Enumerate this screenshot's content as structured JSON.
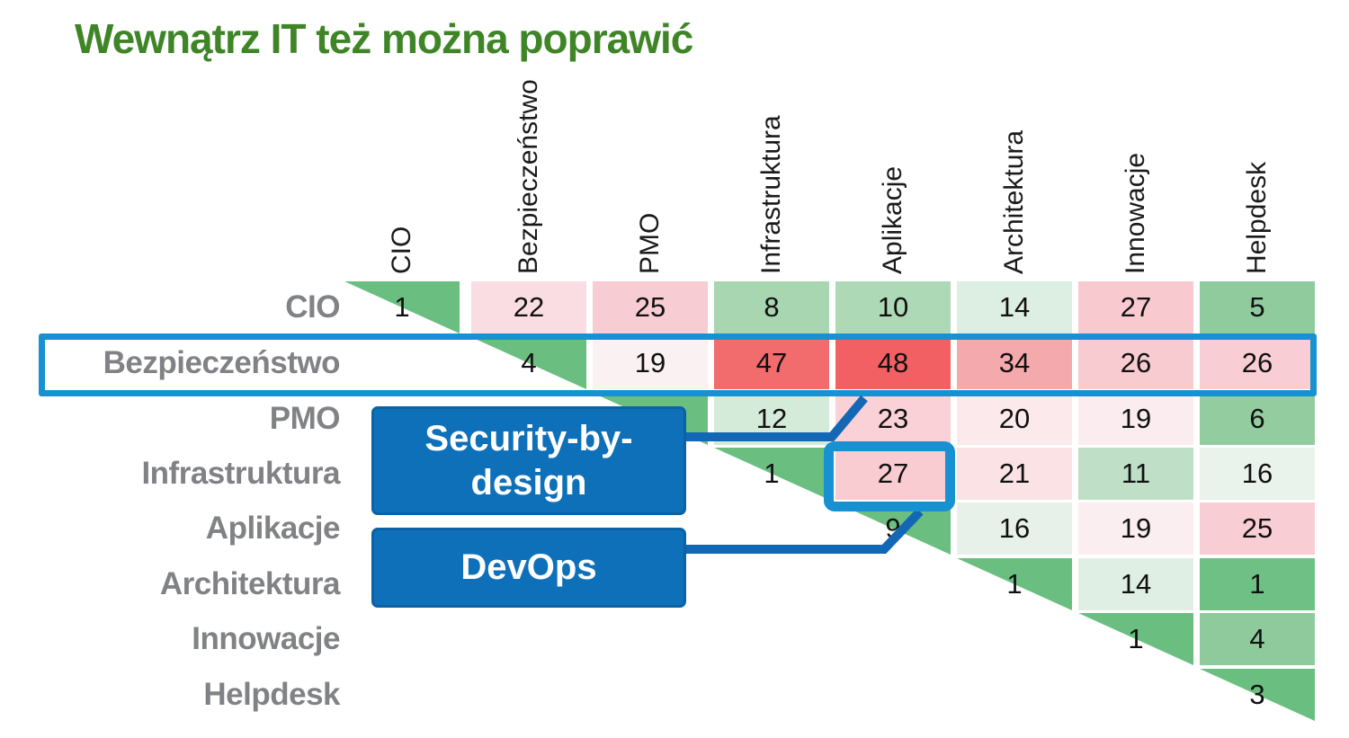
{
  "title": {
    "text": "Wewnątrz IT też można poprawić"
  },
  "colors": {
    "title_green": "#3f8527",
    "accent_blue": "#1791d1",
    "line_blue": "#1268b4",
    "callout_blue": "#0d70b8",
    "diagonal_green": "#6abe80"
  },
  "matrix": {
    "columns": [
      "CIO",
      "Bezpieczeństwo",
      "PMO",
      "Infrastruktura",
      "Aplikacje",
      "Architektura",
      "Innowacje",
      "Helpdesk"
    ],
    "rows": [
      "CIO",
      "Bezpieczeństwo",
      "PMO",
      "Infrastruktura",
      "Aplikacje",
      "Architektura",
      "Innowacje",
      "Helpdesk"
    ],
    "cells": [
      {
        "r": 0,
        "c": 0,
        "v": "1",
        "diag": true
      },
      {
        "r": 0,
        "c": 1,
        "v": "22",
        "bg": "#fadde2"
      },
      {
        "r": 0,
        "c": 2,
        "v": "25",
        "bg": "#f8ccd3"
      },
      {
        "r": 0,
        "c": 3,
        "v": "8",
        "bg": "#a8d6b1"
      },
      {
        "r": 0,
        "c": 4,
        "v": "10",
        "bg": "#aed9b7"
      },
      {
        "r": 0,
        "c": 5,
        "v": "14",
        "bg": "#ddeee2"
      },
      {
        "r": 0,
        "c": 6,
        "v": "27",
        "bg": "#f8c9cf"
      },
      {
        "r": 0,
        "c": 7,
        "v": "5",
        "bg": "#90cb9e"
      },
      {
        "r": 1,
        "c": 1,
        "v": "4",
        "diag": true
      },
      {
        "r": 1,
        "c": 2,
        "v": "19",
        "bg": "#faf1f2"
      },
      {
        "r": 1,
        "c": 3,
        "v": "47",
        "bg": "#f26b6d"
      },
      {
        "r": 1,
        "c": 4,
        "v": "48",
        "bg": "#f26063"
      },
      {
        "r": 1,
        "c": 5,
        "v": "34",
        "bg": "#f4a9ac"
      },
      {
        "r": 1,
        "c": 6,
        "v": "26",
        "bg": "#f8cbd1"
      },
      {
        "r": 1,
        "c": 7,
        "v": "26",
        "bg": "#f8cdd3"
      },
      {
        "r": 2,
        "c": 2,
        "v": "",
        "diag": true
      },
      {
        "r": 2,
        "c": 3,
        "v": "12",
        "bg": "#d5ebda"
      },
      {
        "r": 2,
        "c": 4,
        "v": "23",
        "bg": "#f9d1d7"
      },
      {
        "r": 2,
        "c": 5,
        "v": "20",
        "bg": "#fbe9ec"
      },
      {
        "r": 2,
        "c": 6,
        "v": "19",
        "bg": "#fbedef"
      },
      {
        "r": 2,
        "c": 7,
        "v": "6",
        "bg": "#93cc9f"
      },
      {
        "r": 3,
        "c": 3,
        "v": "1",
        "diag": true
      },
      {
        "r": 3,
        "c": 4,
        "v": "27",
        "bg": "#f8ccd1"
      },
      {
        "r": 3,
        "c": 5,
        "v": "21",
        "bg": "#fae2e5"
      },
      {
        "r": 3,
        "c": 6,
        "v": "11",
        "bg": "#bfe0c7"
      },
      {
        "r": 3,
        "c": 7,
        "v": "16",
        "bg": "#e9f2eb"
      },
      {
        "r": 4,
        "c": 4,
        "v": "9",
        "diag": true
      },
      {
        "r": 4,
        "c": 5,
        "v": "16",
        "bg": "#e7f1ea"
      },
      {
        "r": 4,
        "c": 6,
        "v": "19",
        "bg": "#fbeef0"
      },
      {
        "r": 4,
        "c": 7,
        "v": "25",
        "bg": "#f8ced4"
      },
      {
        "r": 5,
        "c": 5,
        "v": "1",
        "diag": true
      },
      {
        "r": 5,
        "c": 6,
        "v": "14",
        "bg": "#dfefe3"
      },
      {
        "r": 5,
        "c": 7,
        "v": "1",
        "bg": "#6fc084"
      },
      {
        "r": 6,
        "c": 6,
        "v": "1",
        "diag": true
      },
      {
        "r": 6,
        "c": 7,
        "v": "4",
        "bg": "#8fca9d"
      },
      {
        "r": 7,
        "c": 7,
        "v": "3",
        "diag": true
      }
    ]
  },
  "callouts": {
    "security": {
      "label": "Security-by-design"
    },
    "devops": {
      "label": "DevOps"
    }
  },
  "highlights": {
    "row": "Bezpieczeństwo",
    "cell": {
      "row": "Infrastruktura",
      "col": "Aplikacje",
      "value": "27"
    }
  },
  "chart_data": {
    "type": "heatmap",
    "title": "Wewnątrz IT też można poprawić",
    "categories": [
      "CIO",
      "Bezpieczeństwo",
      "PMO",
      "Infrastruktura",
      "Aplikacje",
      "Architektura",
      "Innowacje",
      "Helpdesk"
    ],
    "matrix": [
      [
        1,
        22,
        25,
        8,
        10,
        14,
        27,
        5
      ],
      [
        null,
        4,
        19,
        47,
        48,
        34,
        26,
        26
      ],
      [
        null,
        null,
        null,
        12,
        23,
        20,
        19,
        6
      ],
      [
        null,
        null,
        null,
        1,
        27,
        21,
        11,
        16
      ],
      [
        null,
        null,
        null,
        null,
        9,
        16,
        19,
        25
      ],
      [
        null,
        null,
        null,
        null,
        null,
        1,
        14,
        1
      ],
      [
        null,
        null,
        null,
        null,
        null,
        null,
        1,
        4
      ],
      [
        null,
        null,
        null,
        null,
        null,
        null,
        null,
        3
      ]
    ],
    "layout": "upper-triangular matrix incl. diagonal; diagonal cells are green triangles",
    "color_scale": "green (low) to red (high)",
    "legend_position": "none",
    "annotations": [
      "Security-by-design",
      "DevOps"
    ],
    "highlighted": {
      "row": "Bezpieczeństwo",
      "cell": {
        "row": "Infrastruktura",
        "col": "Aplikacje",
        "value": 27
      }
    }
  }
}
